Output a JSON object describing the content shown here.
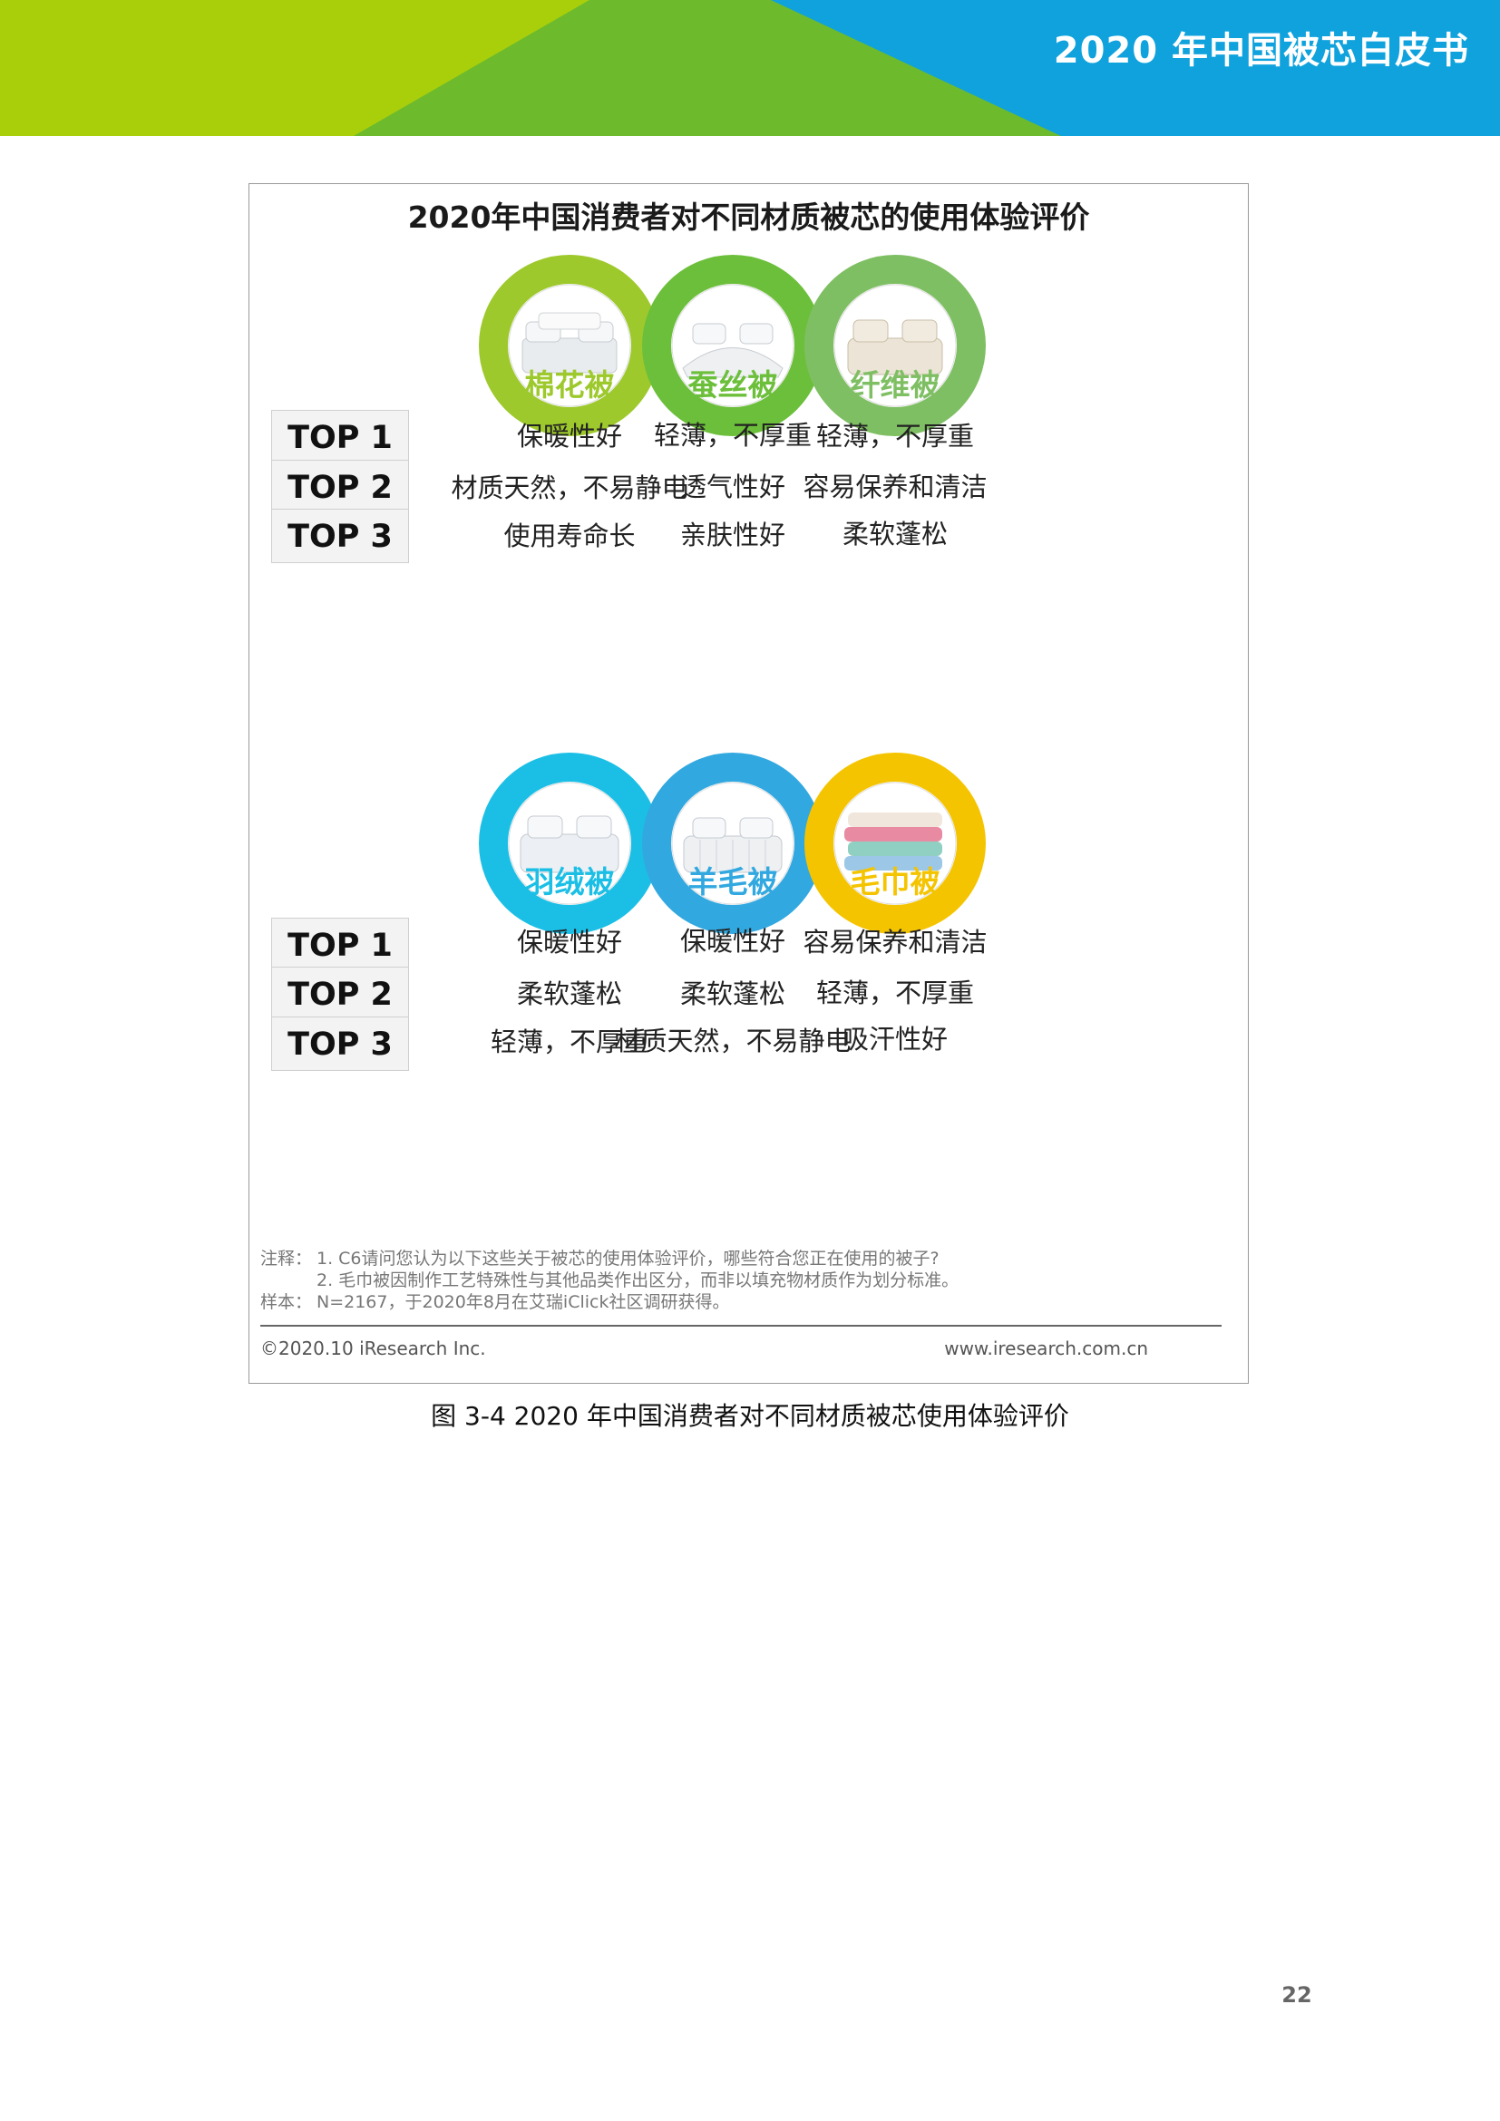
{
  "header": {
    "title": "2020 年中国被芯白皮书"
  },
  "figure": {
    "title": "2020年中国消费者对不同材质被芯的使用体验评价",
    "top_labels": [
      "TOP 1",
      "TOP 2",
      "TOP 3"
    ],
    "group1": {
      "materials": [
        {
          "name": "棉花被",
          "color": "#9dc92c",
          "ranks": [
            "保暖性好",
            "材质天然，不易静电",
            "使用寿命长"
          ]
        },
        {
          "name": "蚕丝被",
          "color": "#6cbf3a",
          "ranks": [
            "轻薄，不厚重",
            "透气性好",
            "亲肤性好"
          ]
        },
        {
          "name": "纤维被",
          "color": "#7fbf63",
          "ranks": [
            "轻薄，不厚重",
            "容易保养和清洁",
            "柔软蓬松"
          ]
        }
      ]
    },
    "group2": {
      "materials": [
        {
          "name": "羽绒被",
          "color": "#1bbfe6",
          "ranks": [
            "保暖性好",
            "柔软蓬松",
            "轻薄，不厚重"
          ]
        },
        {
          "name": "羊毛被",
          "color": "#32a8e0",
          "ranks": [
            "保暖性好",
            "柔软蓬松",
            "材质天然，不易静电"
          ]
        },
        {
          "name": "毛巾被",
          "color": "#f5c400",
          "ranks": [
            "容易保养和清洁",
            "轻薄，不厚重",
            "吸汗性好"
          ]
        }
      ]
    },
    "notes": {
      "label1": "注释：",
      "line1": "1. C6请问您认为以下这些关于被芯的使用体验评价，哪些符合您正在使用的被子?",
      "line2": "2. 毛巾被因制作工艺特殊性与其他品类作出区分，而非以填充物材质作为划分标准。",
      "label2": "样本：",
      "line3": "N=2167，于2020年8月在艾瑞iClick社区调研获得。"
    },
    "copyright": "©2020.10 iResearch Inc.",
    "website": "www.iresearch.com.cn"
  },
  "caption": "图 3-4 2020 年中国消费者对不同材质被芯使用体验评价",
  "page_number": "22"
}
